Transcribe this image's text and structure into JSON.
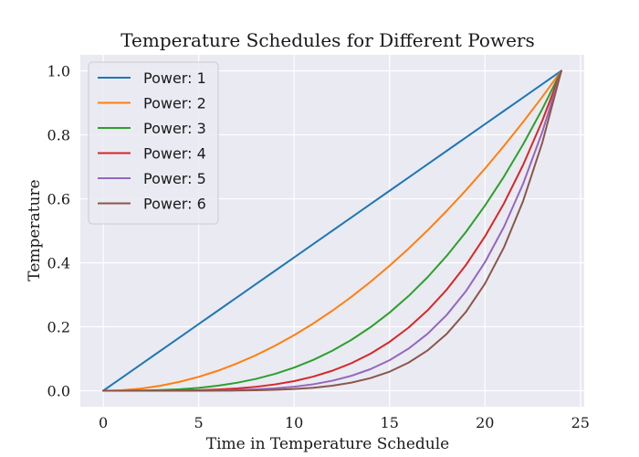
{
  "chart_data": {
    "type": "line",
    "title": "Temperature Schedules for Different Powers",
    "xlabel": "Time in Temperature Schedule",
    "ylabel": "Temperature",
    "xlim": [
      -1.2,
      25.2
    ],
    "ylim": [
      -0.05,
      1.05
    ],
    "xticks": [
      0,
      5,
      10,
      15,
      20,
      25
    ],
    "yticks": [
      0.0,
      0.2,
      0.4,
      0.6,
      0.8,
      1.0
    ],
    "xtick_labels": [
      "0",
      "5",
      "10",
      "15",
      "20",
      "25"
    ],
    "ytick_labels": [
      "0.0",
      "0.2",
      "0.4",
      "0.6",
      "0.8",
      "1.0"
    ],
    "grid": true,
    "legend": "top-left",
    "colors": {
      "background": "#eaeaf2",
      "grid": "#ffffff"
    },
    "x": [
      0,
      1,
      2,
      3,
      4,
      5,
      6,
      7,
      8,
      9,
      10,
      11,
      12,
      13,
      14,
      15,
      16,
      17,
      18,
      19,
      20,
      21,
      22,
      23,
      24
    ],
    "series": [
      {
        "name": "Power: 1",
        "color": "#1f77b4",
        "values": [
          0.0,
          0.0417,
          0.0833,
          0.125,
          0.1667,
          0.2083,
          0.25,
          0.2917,
          0.3333,
          0.375,
          0.4167,
          0.4583,
          0.5,
          0.5417,
          0.5833,
          0.625,
          0.6667,
          0.7083,
          0.75,
          0.7917,
          0.8333,
          0.875,
          0.9167,
          0.9583,
          1.0
        ]
      },
      {
        "name": "Power: 2",
        "color": "#ff7f0e",
        "values": [
          0.0,
          0.0017,
          0.0069,
          0.0156,
          0.0278,
          0.0434,
          0.0625,
          0.0851,
          0.1111,
          0.1406,
          0.1736,
          0.2101,
          0.25,
          0.2934,
          0.3403,
          0.3906,
          0.4444,
          0.5017,
          0.5625,
          0.6267,
          0.6944,
          0.7656,
          0.8403,
          0.9184,
          1.0
        ]
      },
      {
        "name": "Power: 3",
        "color": "#2ca02c",
        "values": [
          0.0,
          0.0001,
          0.0006,
          0.002,
          0.0046,
          0.009,
          0.0156,
          0.0248,
          0.037,
          0.0527,
          0.0723,
          0.0963,
          0.125,
          0.1589,
          0.1985,
          0.2441,
          0.2963,
          0.3554,
          0.4219,
          0.4961,
          0.5787,
          0.6699,
          0.7703,
          0.8802,
          1.0
        ]
      },
      {
        "name": "Power: 4",
        "color": "#d62728",
        "values": [
          0.0,
          0.0,
          0.0,
          0.0002,
          0.0008,
          0.0019,
          0.0039,
          0.0072,
          0.0123,
          0.0198,
          0.0301,
          0.0441,
          0.0625,
          0.0861,
          0.1158,
          0.1526,
          0.1975,
          0.2517,
          0.3164,
          0.3928,
          0.4823,
          0.5862,
          0.7061,
          0.8435,
          1.0
        ]
      },
      {
        "name": "Power: 5",
        "color": "#9467bd",
        "values": [
          0.0,
          0.0,
          0.0,
          0.0,
          0.0001,
          0.0004,
          0.001,
          0.0021,
          0.0041,
          0.0074,
          0.0126,
          0.0202,
          0.0313,
          0.0466,
          0.0675,
          0.0954,
          0.1317,
          0.1783,
          0.2373,
          0.311,
          0.4019,
          0.5129,
          0.6472,
          0.8084,
          1.0
        ]
      },
      {
        "name": "Power: 6",
        "color": "#8c564b",
        "values": [
          0.0,
          0.0,
          0.0,
          0.0,
          0.0,
          0.0001,
          0.0002,
          0.0006,
          0.0014,
          0.0028,
          0.0052,
          0.0093,
          0.0156,
          0.0253,
          0.0394,
          0.0596,
          0.0878,
          0.1263,
          0.178,
          0.2462,
          0.3349,
          0.4488,
          0.5933,
          0.7747,
          1.0
        ]
      }
    ]
  }
}
